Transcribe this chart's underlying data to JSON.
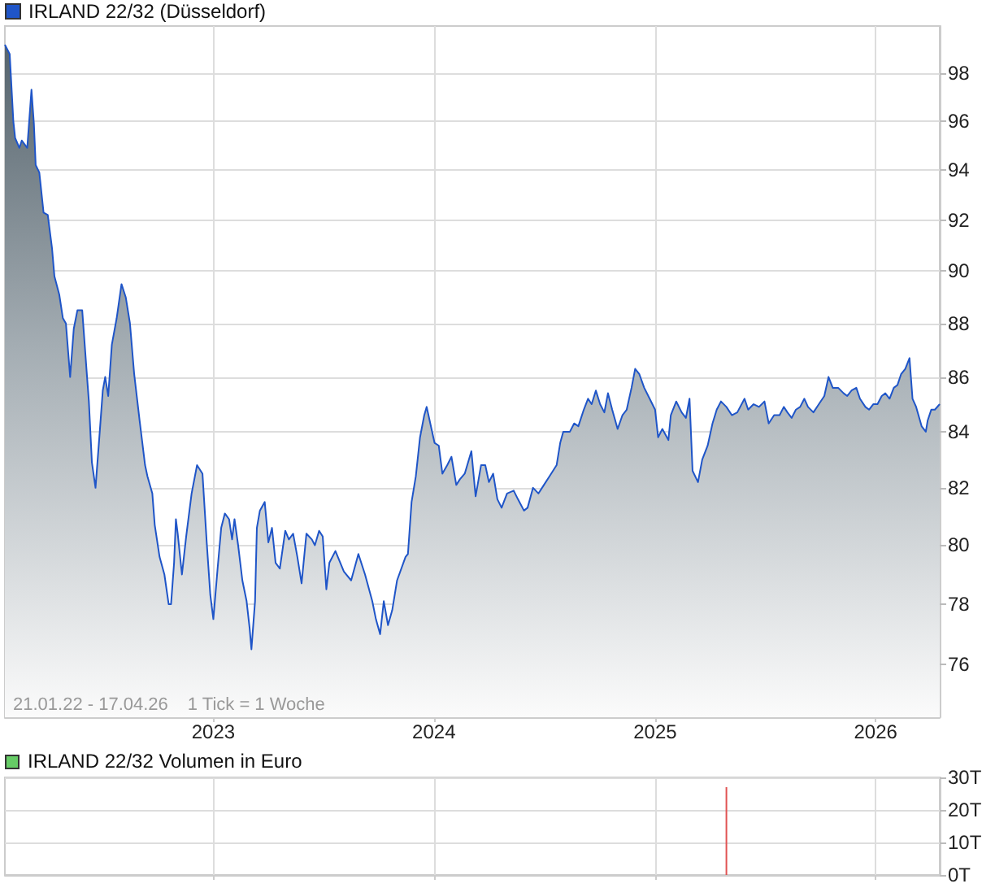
{
  "chart_data": [
    {
      "type": "area",
      "legend": "top left",
      "grid": true,
      "log": true,
      "marker": "none",
      "xlim": [
        "2022-01-21",
        "2026-04-17"
      ],
      "xticks": [
        "2023",
        "2024",
        "2025",
        "2026"
      ],
      "ylim": [
        74.3,
        100
      ],
      "yticks": [
        76,
        78,
        80,
        82,
        84,
        86,
        88,
        90,
        92,
        94,
        96,
        98
      ],
      "annotations": [
        "21.01.22 - 17.04.26",
        "1 Tick = 1 Woche"
      ],
      "series": [
        {
          "name": "IRLAND 22/32 (Düsseldorf)",
          "color": "#1f55c8",
          "x": [
            "2022-01-21",
            "2022-01-29",
            "2022-02-04",
            "2022-02-07",
            "2022-02-14",
            "2022-02-18",
            "2022-02-27",
            "2022-03-04",
            "2022-03-06",
            "2022-03-10",
            "2022-03-13",
            "2022-03-19",
            "2022-03-26",
            "2022-04-02",
            "2022-04-09",
            "2022-04-13",
            "2022-04-21",
            "2022-04-27",
            "2022-05-02",
            "2022-05-09",
            "2022-05-15",
            "2022-05-21",
            "2022-05-29",
            "2022-06-05",
            "2022-06-09",
            "2022-06-14",
            "2022-06-20",
            "2022-06-27",
            "2022-07-02",
            "2022-07-06",
            "2022-07-11",
            "2022-07-17",
            "2022-07-25",
            "2022-08-02",
            "2022-08-09",
            "2022-08-16",
            "2022-08-23",
            "2022-09-01",
            "2022-09-10",
            "2022-09-14",
            "2022-09-22",
            "2022-09-26",
            "2022-10-04",
            "2022-10-12",
            "2022-10-19",
            "2022-10-23",
            "2022-10-28",
            "2022-10-31",
            "2022-11-03",
            "2022-11-10",
            "2022-11-17",
            "2022-11-26",
            "2022-12-05",
            "2022-12-14",
            "2022-12-21",
            "2022-12-27",
            "2023-01-01",
            "2023-01-08",
            "2023-01-14",
            "2023-01-20",
            "2023-01-27",
            "2023-02-01",
            "2023-02-05",
            "2023-02-11",
            "2023-02-18",
            "2023-02-25",
            "2023-03-02",
            "2023-03-05",
            "2023-03-11",
            "2023-03-14",
            "2023-03-19",
            "2023-03-27",
            "2023-04-02",
            "2023-04-08",
            "2023-04-14",
            "2023-04-21",
            "2023-04-30",
            "2023-05-06",
            "2023-05-13",
            "2023-05-20",
            "2023-05-27",
            "2023-06-04",
            "2023-06-13",
            "2023-06-18",
            "2023-06-25",
            "2023-07-01",
            "2023-07-07",
            "2023-07-12",
            "2023-07-22",
            "2023-08-05",
            "2023-08-17",
            "2023-08-29",
            "2023-09-09",
            "2023-09-21",
            "2023-09-27",
            "2023-10-04",
            "2023-10-10",
            "2023-10-17",
            "2023-10-24",
            "2023-11-01",
            "2023-11-15",
            "2023-11-19",
            "2023-11-25",
            "2023-12-02",
            "2023-12-09",
            "2023-12-16",
            "2023-12-20",
            "2023-12-24",
            "2024-01-02",
            "2024-01-09",
            "2024-01-15",
            "2024-01-23",
            "2024-01-30",
            "2024-02-07",
            "2024-02-13",
            "2024-02-21",
            "2024-03-03",
            "2024-03-10",
            "2024-03-19",
            "2024-03-26",
            "2024-04-01",
            "2024-04-08",
            "2024-04-15",
            "2024-04-22",
            "2024-05-01",
            "2024-05-12",
            "2024-05-19",
            "2024-05-29",
            "2024-06-04",
            "2024-06-13",
            "2024-06-22",
            "2024-07-01",
            "2024-07-10",
            "2024-07-22",
            "2024-07-28",
            "2024-08-02",
            "2024-08-13",
            "2024-08-20",
            "2024-08-27",
            "2024-09-05",
            "2024-09-12",
            "2024-09-18",
            "2024-09-25",
            "2024-10-02",
            "2024-10-09",
            "2024-10-15",
            "2024-10-22",
            "2024-10-31",
            "2024-11-08",
            "2024-11-15",
            "2024-11-23",
            "2024-11-29",
            "2024-12-06",
            "2024-12-14",
            "2024-12-23",
            "2025-01-01",
            "2025-01-06",
            "2025-01-13",
            "2025-01-18",
            "2025-01-23",
            "2025-01-27",
            "2025-02-05",
            "2025-02-14",
            "2025-02-21",
            "2025-02-27",
            "2025-03-04",
            "2025-03-13",
            "2025-03-20",
            "2025-03-29",
            "2025-04-06",
            "2025-04-13",
            "2025-04-20",
            "2025-04-29",
            "2025-05-08",
            "2025-05-17",
            "2025-05-29",
            "2025-06-04",
            "2025-06-13",
            "2025-06-22",
            "2025-07-01",
            "2025-07-08",
            "2025-07-17",
            "2025-07-26",
            "2025-08-02",
            "2025-08-08",
            "2025-08-15",
            "2025-08-22",
            "2025-08-29",
            "2025-09-05",
            "2025-09-11",
            "2025-09-20",
            "2025-09-29",
            "2025-10-08",
            "2025-10-15",
            "2025-10-22",
            "2025-10-31",
            "2025-11-09",
            "2025-11-15",
            "2025-11-22",
            "2025-11-30",
            "2025-12-06",
            "2025-12-15",
            "2025-12-21",
            "2025-12-28",
            "2026-01-04",
            "2026-01-11",
            "2026-01-17",
            "2026-01-24",
            "2026-01-31",
            "2026-02-06",
            "2026-02-12",
            "2026-02-19",
            "2026-02-26",
            "2026-03-03",
            "2026-03-09",
            "2026-03-18",
            "2026-03-25",
            "2026-03-28",
            "2026-04-03",
            "2026-04-09",
            "2026-04-17"
          ],
          "values": [
            99.2,
            98.8,
            96.0,
            95.3,
            94.9,
            95.2,
            94.9,
            96.6,
            97.3,
            95.9,
            94.2,
            93.9,
            92.3,
            92.2,
            90.9,
            89.8,
            89.1,
            88.2,
            88.0,
            86.0,
            87.8,
            88.5,
            88.5,
            86.3,
            85.1,
            82.9,
            82.0,
            84.0,
            85.5,
            86.0,
            85.3,
            87.2,
            88.2,
            89.5,
            89.0,
            88.0,
            86.1,
            84.4,
            82.8,
            82.4,
            81.8,
            80.7,
            79.6,
            79.0,
            78.0,
            78.0,
            79.4,
            80.9,
            80.4,
            79.0,
            80.3,
            81.8,
            82.8,
            82.5,
            80.1,
            78.3,
            77.5,
            79.2,
            80.6,
            81.1,
            80.9,
            80.2,
            80.9,
            80.0,
            78.8,
            78.1,
            77.2,
            76.5,
            78.1,
            80.6,
            81.2,
            81.5,
            80.1,
            80.6,
            79.4,
            79.2,
            80.5,
            80.2,
            80.4,
            79.6,
            78.7,
            80.4,
            80.2,
            80.0,
            80.5,
            80.3,
            78.5,
            79.4,
            79.8,
            79.1,
            78.8,
            79.7,
            79.0,
            78.1,
            77.5,
            77.0,
            78.1,
            77.3,
            77.8,
            78.8,
            79.6,
            79.7,
            81.5,
            82.4,
            83.8,
            84.6,
            84.9,
            84.5,
            83.6,
            83.5,
            82.5,
            82.8,
            83.1,
            82.1,
            82.3,
            82.5,
            83.3,
            81.7,
            82.8,
            82.8,
            82.2,
            82.5,
            81.6,
            81.3,
            81.8,
            81.9,
            81.6,
            81.2,
            81.3,
            82.0,
            81.8,
            82.1,
            82.4,
            82.8,
            83.6,
            84.0,
            84.0,
            84.3,
            84.2,
            84.8,
            85.2,
            85.0,
            85.5,
            85.0,
            84.7,
            85.4,
            84.8,
            84.1,
            84.6,
            84.8,
            85.6,
            86.3,
            86.1,
            85.6,
            85.2,
            84.8,
            83.8,
            84.1,
            83.9,
            83.7,
            84.6,
            85.1,
            84.7,
            84.5,
            85.2,
            82.6,
            82.2,
            83.0,
            83.5,
            84.3,
            84.8,
            85.1,
            84.9,
            84.6,
            84.7,
            85.2,
            84.8,
            85.0,
            84.9,
            85.1,
            84.3,
            84.6,
            84.6,
            84.9,
            84.7,
            84.5,
            84.8,
            84.9,
            85.2,
            84.9,
            84.7,
            85.0,
            85.3,
            86.0,
            85.6,
            85.6,
            85.4,
            85.3,
            85.5,
            85.6,
            85.2,
            84.9,
            84.8,
            85.0,
            85.0,
            85.3,
            85.4,
            85.2,
            85.6,
            85.7,
            86.1,
            86.3,
            86.7,
            85.2,
            84.9,
            84.2,
            84.0,
            84.4,
            84.8,
            84.8,
            85.0
          ]
        }
      ]
    },
    {
      "type": "bar",
      "legend": "top left",
      "grid": true,
      "tick_labels": "y",
      "xlim": [
        "2022-01-21",
        "2026-04-17"
      ],
      "xticks": [
        "2023",
        "2024",
        "2025",
        "2026"
      ],
      "ylim": [
        0,
        30
      ],
      "yticks": [
        {
          "value": 0,
          "label": "0T"
        },
        {
          "value": 10,
          "label": "10T"
        },
        {
          "value": 20,
          "label": "20T"
        },
        {
          "value": 30,
          "label": "30T"
        }
      ],
      "series": [
        {
          "name": "IRLAND 22/32 Volumen in Euro",
          "color": "#66cc66",
          "colors": [
            "#e05252"
          ],
          "x": [
            "2025-04-29"
          ],
          "values": [
            27
          ]
        }
      ]
    }
  ]
}
